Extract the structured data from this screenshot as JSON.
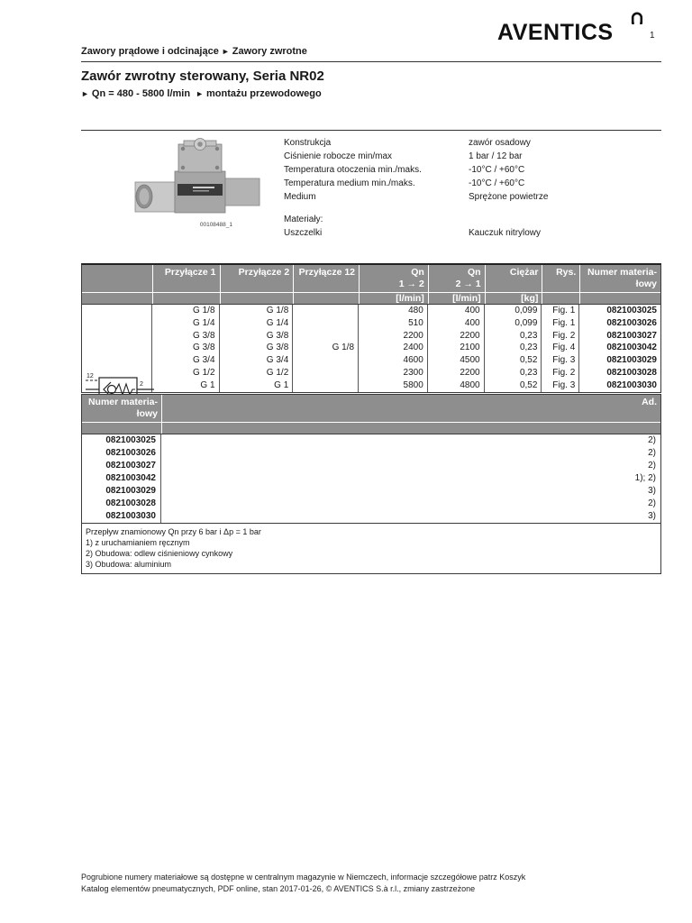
{
  "page": {
    "number": "1"
  },
  "logo": {
    "text": "AVENTICS"
  },
  "breadcrumb": {
    "section": "Zawory prądowe i odcinające",
    "arrow": "►",
    "subsection": "Zawory zwrotne"
  },
  "title": "Zawór zwrotny sterowany, Seria NR02",
  "subtitle": {
    "arrow": "►",
    "items": [
      "Qn = 480 - 5800 l/min",
      "montażu przewodowego"
    ]
  },
  "product": {
    "image_caption": "00108488_1",
    "specs": [
      {
        "label": "Konstrukcja",
        "value": "zawór osadowy"
      },
      {
        "label": "Ciśnienie robocze min/max",
        "value": "1 bar / 12 bar"
      },
      {
        "label": "Temperatura otoczenia min./maks.",
        "value": "-10°C / +60°C"
      },
      {
        "label": "Temperatura medium min./maks.",
        "value": "-10°C / +60°C"
      },
      {
        "label": "Medium",
        "value": "Sprężone powietrze"
      }
    ],
    "materials_heading": "Materiały:",
    "materials": [
      {
        "label": "Uszczelki",
        "value": "Kauczuk nitrylowy"
      }
    ]
  },
  "flow_table": {
    "headers": [
      {
        "lines": [
          ""
        ]
      },
      {
        "lines": [
          "Przyłącze 1"
        ]
      },
      {
        "lines": [
          "Przyłącze 2"
        ]
      },
      {
        "lines": [
          "Przyłącze 12"
        ]
      },
      {
        "lines": [
          "Qn",
          "1 → 2"
        ]
      },
      {
        "lines": [
          "Qn",
          "2 → 1"
        ]
      },
      {
        "lines": [
          "Ciężar"
        ]
      },
      {
        "lines": [
          "Rys."
        ]
      },
      {
        "lines": [
          "Numer materia-",
          "łowy"
        ]
      }
    ],
    "units": [
      "",
      "",
      "",
      "",
      "[l/min]",
      "[l/min]",
      "[kg]",
      "",
      ""
    ],
    "rows": [
      [
        "G 1/8",
        "G 1/8",
        "",
        "480",
        "400",
        "0,099",
        "Fig. 1",
        "0821003025"
      ],
      [
        "G 1/4",
        "G 1/4",
        "",
        "510",
        "400",
        "0,099",
        "Fig. 1",
        "0821003026"
      ],
      [
        "G 3/8",
        "G 3/8",
        "",
        "2200",
        "2200",
        "0,23",
        "Fig. 2",
        "0821003027"
      ],
      [
        "G 3/8",
        "G 3/8",
        "G 1/8",
        "2400",
        "2100",
        "0,23",
        "Fig. 4",
        "0821003042"
      ],
      [
        "G 3/4",
        "G 3/4",
        "",
        "4600",
        "4500",
        "0,52",
        "Fig. 3",
        "0821003029"
      ],
      [
        "G 1/2",
        "G 1/2",
        "",
        "2300",
        "2200",
        "0,23",
        "Fig. 2",
        "0821003028"
      ],
      [
        "G 1",
        "G 1",
        "",
        "5800",
        "4800",
        "0,52",
        "Fig. 3",
        "0821003030"
      ]
    ],
    "symbol_labels": {
      "pilot": "12",
      "outlet": "2",
      "inlet": "1"
    }
  },
  "order_table": {
    "header_left_lines": [
      "Numer materia-",
      "łowy"
    ],
    "header_right": "Ad.",
    "rows": [
      [
        "0821003025",
        "2)"
      ],
      [
        "0821003026",
        "2)"
      ],
      [
        "0821003027",
        "2)"
      ],
      [
        "0821003042",
        "1); 2)"
      ],
      [
        "0821003029",
        "3)"
      ],
      [
        "0821003028",
        "2)"
      ],
      [
        "0821003030",
        "3)"
      ]
    ]
  },
  "footnotes": [
    "Przepływ znamionowy Qn przy 6 bar i Δp = 1 bar",
    "1) z uruchamianiem ręcznym",
    "2) Obudowa: odlew ciśnieniowy cynkowy",
    "3) Obudowa: aluminium"
  ],
  "footer": {
    "line1": "Pogrubione numery materiałowe są dostępne w centralnym magazynie w Niemczech, informacje szczegółowe patrz Koszyk",
    "line2": "Katalog elementów pneumatycznych, PDF online, stan 2017-01-26, © AVENTICS S.à r.l., zmiany zastrzeżone"
  },
  "colors": {
    "header_gray": "#8e8e8e",
    "border_dark": "#3a3a3a",
    "text": "#1a1a1a"
  }
}
